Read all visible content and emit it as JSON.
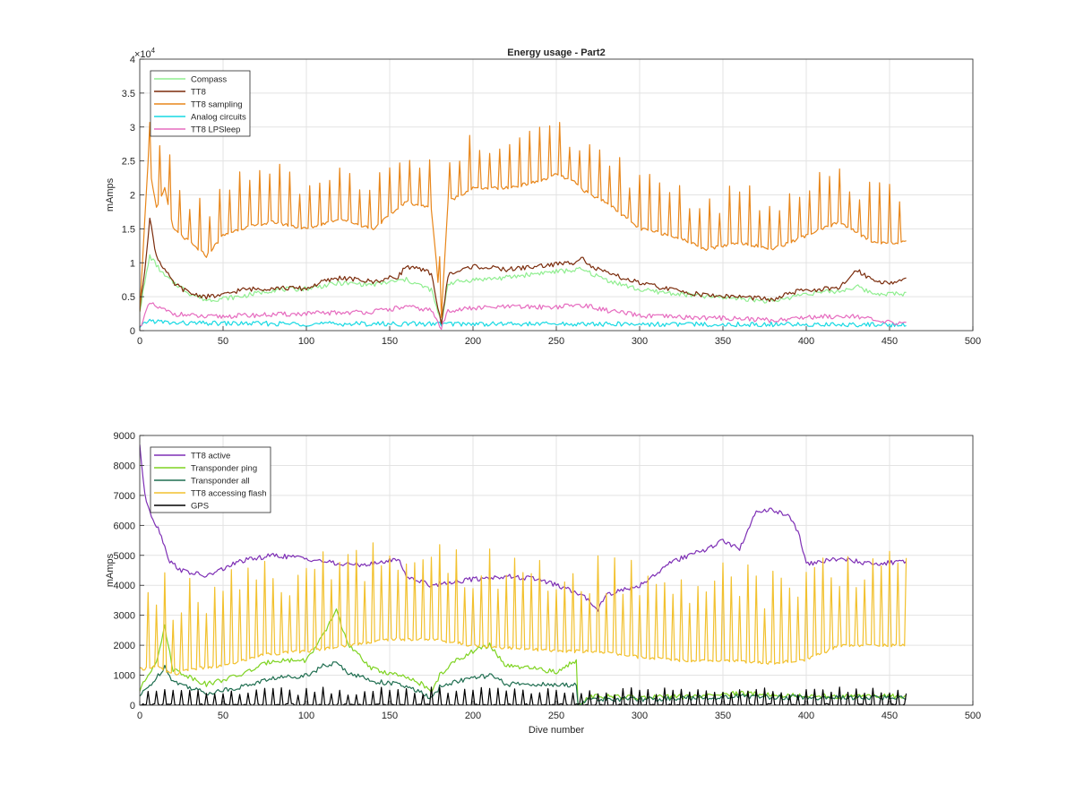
{
  "figure": {
    "title": "Energy usage - Part2",
    "colors": {
      "grid": "#e3e3e3",
      "axis": "#262626",
      "background": "#ffffff"
    }
  },
  "chart_data": [
    {
      "type": "line",
      "title": "Energy usage - Part2",
      "xlabel": "",
      "ylabel": "mAmps",
      "xlim": [
        0,
        500
      ],
      "ylim": [
        0,
        40000
      ],
      "x_ticks": [
        0,
        50,
        100,
        150,
        200,
        250,
        300,
        350,
        400,
        450,
        500
      ],
      "x_tick_labels": [
        "0",
        "50",
        "100",
        "150",
        "200",
        "250",
        "300",
        "350",
        "400",
        "450",
        "500"
      ],
      "y_ticks": [
        0,
        5000,
        10000,
        15000,
        20000,
        25000,
        30000,
        35000,
        40000
      ],
      "y_tick_labels": [
        "0",
        "0.5",
        "1",
        "1.5",
        "2",
        "2.5",
        "3",
        "3.5",
        "4"
      ],
      "y_exponent": "10",
      "y_exponent_power": "4",
      "grid": true,
      "legend_position": "top-left",
      "series": [
        {
          "name": "Compass",
          "color": "#90ee90",
          "x": [
            0,
            6,
            15,
            30,
            40,
            60,
            80,
            100,
            120,
            140,
            160,
            175,
            181,
            185,
            200,
            220,
            240,
            255,
            265,
            280,
            300,
            320,
            340,
            360,
            370,
            380,
            400,
            420,
            430,
            440,
            460
          ],
          "y": [
            3000,
            11000,
            8000,
            5500,
            4500,
            5000,
            6000,
            6200,
            7000,
            6800,
            7500,
            6000,
            1000,
            7000,
            7500,
            7800,
            8500,
            8800,
            9000,
            7500,
            6000,
            5500,
            5000,
            4800,
            4500,
            4300,
            5500,
            5800,
            6500,
            5500,
            5400
          ]
        },
        {
          "name": "TT8",
          "color": "#7b2c0c",
          "x": [
            0,
            3,
            6,
            10,
            15,
            20,
            30,
            40,
            50,
            60,
            80,
            100,
            110,
            120,
            140,
            155,
            160,
            175,
            181,
            185,
            200,
            220,
            240,
            250,
            260,
            265,
            270,
            280,
            300,
            320,
            340,
            360,
            370,
            380,
            390,
            400,
            420,
            430,
            440,
            450,
            460
          ],
          "y": [
            3000,
            9000,
            16500,
            11000,
            9000,
            7000,
            5500,
            5000,
            5200,
            6000,
            6300,
            6200,
            7200,
            7800,
            7200,
            8000,
            9500,
            8500,
            800,
            8200,
            9500,
            9000,
            9500,
            9800,
            10000,
            11000,
            9500,
            8500,
            7000,
            6000,
            5200,
            5000,
            4800,
            4500,
            5500,
            6000,
            6200,
            9000,
            7500,
            7000,
            7500
          ]
        },
        {
          "name": "TT8 sampling",
          "color": "#e8861a",
          "x": [
            0,
            5,
            10,
            15,
            20,
            30,
            40,
            50,
            60,
            80,
            100,
            120,
            140,
            160,
            175,
            181,
            185,
            200,
            220,
            240,
            250,
            260,
            270,
            280,
            300,
            320,
            340,
            360,
            380,
            400,
            420,
            440,
            460
          ],
          "y": [
            3000,
            25000,
            18000,
            21000,
            15000,
            13000,
            11000,
            14000,
            15000,
            16000,
            15000,
            16500,
            15000,
            19000,
            18000,
            2000,
            19000,
            21000,
            21000,
            22000,
            23000,
            22000,
            20000,
            19000,
            15000,
            14000,
            12000,
            13000,
            12000,
            14000,
            16000,
            13000,
            13000
          ],
          "spikes_every_x": 6,
          "spike_height": 8000
        },
        {
          "name": "Analog circuits",
          "color": "#17d9e3",
          "x": [
            0,
            5,
            20,
            100,
            200,
            300,
            400,
            460
          ],
          "y": [
            300,
            1500,
            1100,
            1000,
            1000,
            950,
            900,
            900
          ]
        },
        {
          "name": "TT8 LPSleep",
          "color": "#e66bbf",
          "x": [
            0,
            6,
            10,
            20,
            40,
            60,
            100,
            140,
            160,
            175,
            181,
            185,
            200,
            220,
            250,
            265,
            280,
            300,
            320,
            360,
            380,
            400,
            430,
            445,
            460
          ],
          "y": [
            500,
            4000,
            3500,
            2500,
            2000,
            2200,
            2500,
            2800,
            3500,
            3000,
            300,
            3000,
            3300,
            3500,
            3500,
            3800,
            3000,
            2200,
            2000,
            1800,
            1500,
            2000,
            2200,
            1200,
            1200
          ]
        }
      ]
    },
    {
      "type": "line",
      "title": "",
      "xlabel": "Dive number",
      "ylabel": "mAmps",
      "xlim": [
        0,
        500
      ],
      "ylim": [
        0,
        9000
      ],
      "x_ticks": [
        0,
        50,
        100,
        150,
        200,
        250,
        300,
        350,
        400,
        450,
        500
      ],
      "x_tick_labels": [
        "0",
        "50",
        "100",
        "150",
        "200",
        "250",
        "300",
        "350",
        "400",
        "450",
        "500"
      ],
      "y_ticks": [
        0,
        1000,
        2000,
        3000,
        4000,
        5000,
        6000,
        7000,
        8000,
        9000
      ],
      "y_tick_labels": [
        "0",
        "1000",
        "2000",
        "3000",
        "4000",
        "5000",
        "6000",
        "7000",
        "8000",
        "9000"
      ],
      "grid": true,
      "legend_position": "top-left",
      "series": [
        {
          "name": "TT8 active",
          "color": "#7e2fb5",
          "x": [
            0,
            3,
            8,
            12,
            18,
            25,
            40,
            60,
            80,
            100,
            120,
            140,
            155,
            160,
            175,
            185,
            200,
            220,
            240,
            260,
            270,
            275,
            280,
            300,
            320,
            340,
            350,
            360,
            370,
            380,
            390,
            395,
            400,
            420,
            440,
            460
          ],
          "y": [
            8700,
            7000,
            6200,
            5800,
            4800,
            4500,
            4300,
            4800,
            5000,
            4900,
            4700,
            4700,
            4900,
            4300,
            4000,
            4100,
            4200,
            4300,
            4200,
            3800,
            3500,
            3200,
            3700,
            4000,
            4800,
            5200,
            5500,
            5200,
            6500,
            6500,
            6300,
            5800,
            4700,
            4900,
            4700,
            4800
          ]
        },
        {
          "name": "Transponder ping",
          "color": "#7ed321",
          "x": [
            0,
            10,
            15,
            20,
            40,
            60,
            80,
            100,
            110,
            118,
            125,
            140,
            155,
            160,
            170,
            175,
            180,
            190,
            200,
            210,
            220,
            240,
            250,
            262,
            263,
            270,
            300,
            340,
            360,
            400,
            440,
            460
          ],
          "y": [
            500,
            1500,
            2600,
            1200,
            700,
            1000,
            1500,
            1500,
            2300,
            3200,
            2000,
            1200,
            1000,
            900,
            700,
            400,
            1000,
            1500,
            1800,
            2000,
            1300,
            1200,
            1100,
            1500,
            0,
            300,
            250,
            300,
            400,
            300,
            300,
            300
          ]
        },
        {
          "name": "Transponder all",
          "color": "#1f6e50",
          "x": [
            0,
            10,
            15,
            20,
            40,
            60,
            80,
            100,
            110,
            118,
            125,
            140,
            155,
            160,
            170,
            175,
            180,
            190,
            200,
            210,
            220,
            240,
            250,
            262,
            263,
            270,
            300,
            340,
            360,
            400,
            440,
            460
          ],
          "y": [
            300,
            900,
            1300,
            800,
            400,
            600,
            900,
            1000,
            1300,
            1400,
            1100,
            800,
            700,
            600,
            400,
            200,
            600,
            800,
            900,
            1000,
            700,
            700,
            650,
            700,
            0,
            200,
            200,
            250,
            300,
            250,
            250,
            250
          ]
        },
        {
          "name": "TT8 accessing flash",
          "color": "#f2c12e",
          "x": [
            0,
            10,
            20,
            30,
            50,
            75,
            100,
            125,
            150,
            175,
            200,
            225,
            250,
            275,
            300,
            325,
            350,
            375,
            400,
            420,
            440,
            460
          ],
          "y": [
            1200,
            1300,
            1000,
            1200,
            1300,
            1700,
            1800,
            2000,
            2200,
            2200,
            2000,
            1900,
            1800,
            1800,
            1600,
            1500,
            1500,
            1400,
            1500,
            2000,
            2000,
            2000
          ],
          "spikes_every_x": 5,
          "spike_height": 3000
        },
        {
          "name": "GPS",
          "color": "#000000",
          "x": [
            0,
            460
          ],
          "y": [
            0,
            0
          ],
          "spikes_every_x": 5,
          "spike_height": 550
        }
      ]
    }
  ]
}
